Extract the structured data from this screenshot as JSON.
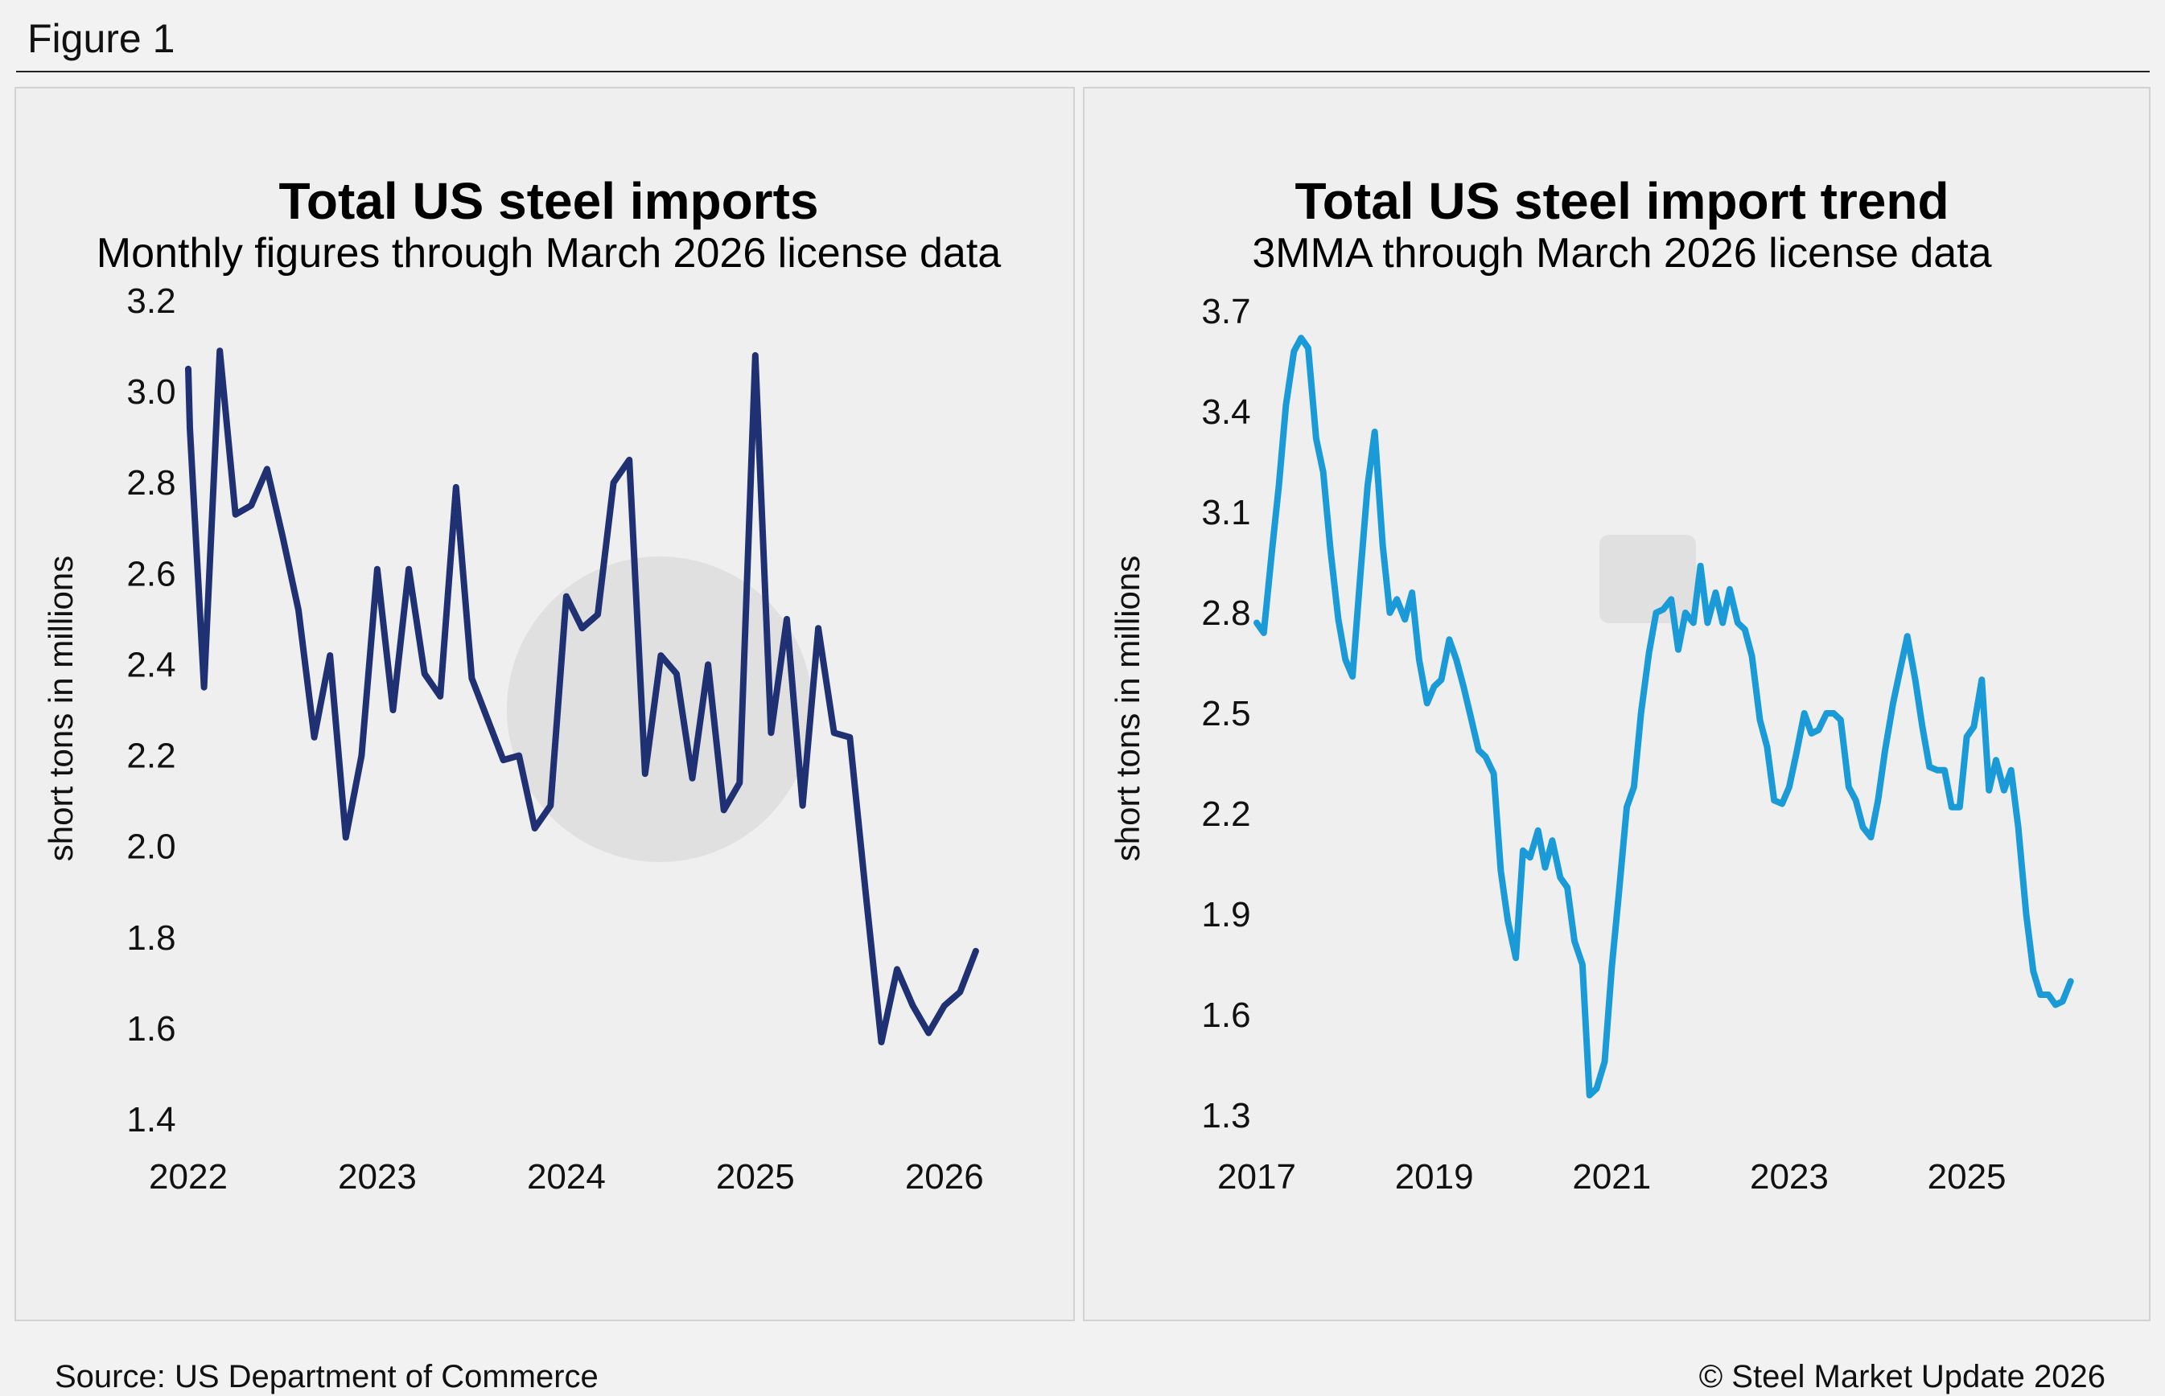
{
  "figure_label": "Figure 1",
  "source": "Source: US Department of Commerce",
  "copyright": "© Steel Market Update 2026",
  "chart_data": [
    {
      "type": "line",
      "title": "Total US steel imports",
      "subtitle": "Monthly figures through March 2026 license data",
      "ylabel": "short tons in millions",
      "xlabel": "",
      "ylim": [
        1.4,
        3.2
      ],
      "yticks": [
        "3.2",
        "3.0",
        "2.8",
        "2.6",
        "2.4",
        "2.2",
        "2.0",
        "1.8",
        "1.6",
        "1.4"
      ],
      "xlim": [
        2022.0,
        2026.35
      ],
      "xticks": [
        "2022",
        "2023",
        "2024",
        "2025",
        "2026"
      ],
      "grid": false,
      "legend": "none",
      "color": "#1f3172",
      "series": [
        {
          "x": [
            2022.0,
            2022.0083,
            2022.0833,
            2022.1667,
            2022.25,
            2022.3333,
            2022.4167,
            2022.5,
            2022.5833,
            2022.6667,
            2022.75,
            2022.8333,
            2022.9167,
            2023.0,
            2023.0833,
            2023.1667,
            2023.25,
            2023.3333,
            2023.4167,
            2023.5,
            2023.5833,
            2023.6667,
            2023.75,
            2023.8333,
            2023.9167,
            2024.0,
            2024.0833,
            2024.1667,
            2024.25,
            2024.3333,
            2024.4167,
            2024.5,
            2024.5833,
            2024.6667,
            2024.75,
            2024.8333,
            2024.9167,
            2025.0,
            2025.0833,
            2025.1667,
            2025.25,
            2025.3333,
            2025.4167,
            2025.5,
            2025.5833,
            2025.6667,
            2025.75,
            2025.8333,
            2025.9167,
            2026.0,
            2026.0833,
            2026.1667
          ],
          "y": [
            3.05,
            2.92,
            2.35,
            3.09,
            2.73,
            2.75,
            2.83,
            2.68,
            2.52,
            2.24,
            2.42,
            2.02,
            2.2,
            2.61,
            2.3,
            2.61,
            2.38,
            2.33,
            2.79,
            2.37,
            2.28,
            2.19,
            2.2,
            2.04,
            2.09,
            2.55,
            2.48,
            2.51,
            2.8,
            2.85,
            2.16,
            2.42,
            2.38,
            2.15,
            2.4,
            2.08,
            2.14,
            3.08,
            2.25,
            2.5,
            2.09,
            2.48,
            2.25,
            2.24,
            1.9,
            1.57,
            1.73,
            1.65,
            1.59,
            1.65,
            1.68,
            1.77
          ]
        }
      ]
    },
    {
      "type": "line",
      "title": "Total US steel import trend",
      "subtitle": "3MMA through March 2026 license data",
      "ylabel": "short tons in millions",
      "xlabel": "",
      "ylim": [
        1.3,
        3.7
      ],
      "yticks": [
        "3.7",
        "3.4",
        "3.1",
        "2.8",
        "2.5",
        "2.2",
        "1.9",
        "1.6",
        "1.3"
      ],
      "xlim": [
        2017.0,
        2026.3
      ],
      "xticks": [
        "2017",
        "2019",
        "2021",
        "2023",
        "2025"
      ],
      "grid": false,
      "legend": "none",
      "color": "#1a9bd7",
      "series": [
        {
          "x": [
            2017.0,
            2017.08,
            2017.17,
            2017.25,
            2017.33,
            2017.42,
            2017.5,
            2017.58,
            2017.67,
            2017.75,
            2017.83,
            2017.92,
            2018.0,
            2018.08,
            2018.17,
            2018.25,
            2018.33,
            2018.42,
            2018.5,
            2018.58,
            2018.67,
            2018.75,
            2018.83,
            2018.92,
            2019.0,
            2019.08,
            2019.17,
            2019.25,
            2019.33,
            2019.42,
            2019.5,
            2019.58,
            2019.67,
            2019.75,
            2019.83,
            2019.92,
            2020.0,
            2020.08,
            2020.17,
            2020.25,
            2020.33,
            2020.42,
            2020.5,
            2020.58,
            2020.67,
            2020.75,
            2020.83,
            2020.92,
            2021.0,
            2021.08,
            2021.17,
            2021.25,
            2021.33,
            2021.42,
            2021.5,
            2021.58,
            2021.67,
            2021.75,
            2021.83,
            2021.92,
            2022.0,
            2022.08,
            2022.17,
            2022.25,
            2022.33,
            2022.42,
            2022.5,
            2022.58,
            2022.67,
            2022.75,
            2022.83,
            2022.92,
            2023.0,
            2023.08,
            2023.17,
            2023.25,
            2023.33,
            2023.42,
            2023.5,
            2023.58,
            2023.67,
            2023.75,
            2023.83,
            2023.92,
            2024.0,
            2024.08,
            2024.17,
            2024.25,
            2024.33,
            2024.42,
            2024.5,
            2024.58,
            2024.67,
            2024.75,
            2024.83,
            2024.92,
            2025.0,
            2025.08,
            2025.17,
            2025.25,
            2025.33,
            2025.42,
            2025.5,
            2025.58,
            2025.67,
            2025.75,
            2025.83,
            2025.92,
            2026.0,
            2026.08,
            2026.17
          ],
          "y": [
            2.77,
            2.74,
            2.98,
            3.18,
            3.42,
            3.58,
            3.62,
            3.59,
            3.32,
            3.22,
            2.99,
            2.78,
            2.66,
            2.61,
            2.92,
            3.18,
            3.34,
            3.0,
            2.8,
            2.84,
            2.78,
            2.86,
            2.66,
            2.53,
            2.58,
            2.6,
            2.72,
            2.66,
            2.58,
            2.48,
            2.39,
            2.37,
            2.32,
            2.03,
            1.88,
            1.77,
            2.09,
            2.07,
            2.15,
            2.04,
            2.12,
            2.01,
            1.98,
            1.82,
            1.75,
            1.36,
            1.38,
            1.46,
            1.74,
            1.96,
            2.22,
            2.28,
            2.5,
            2.68,
            2.8,
            2.81,
            2.84,
            2.69,
            2.8,
            2.77,
            2.94,
            2.77,
            2.86,
            2.77,
            2.87,
            2.77,
            2.75,
            2.67,
            2.48,
            2.4,
            2.24,
            2.23,
            2.28,
            2.38,
            2.5,
            2.44,
            2.45,
            2.5,
            2.5,
            2.48,
            2.28,
            2.24,
            2.16,
            2.13,
            2.24,
            2.39,
            2.53,
            2.63,
            2.73,
            2.6,
            2.46,
            2.34,
            2.33,
            2.33,
            2.22,
            2.22,
            2.43,
            2.46,
            2.6,
            2.27,
            2.36,
            2.27,
            2.33,
            2.16,
            1.9,
            1.73,
            1.66,
            1.66,
            1.63,
            1.64,
            1.7
          ]
        }
      ]
    }
  ]
}
